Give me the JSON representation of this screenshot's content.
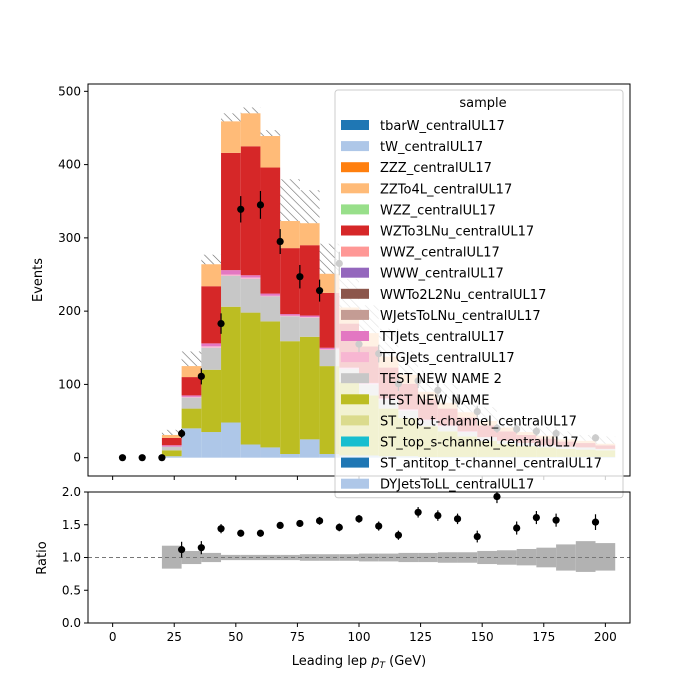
{
  "chart_data": {
    "type": "bar",
    "subtype": "stacked-histogram-with-ratio",
    "x_edges": [
      20,
      28,
      36,
      44,
      52,
      60,
      68,
      76,
      84,
      92,
      100,
      108,
      116,
      124,
      132,
      140,
      148,
      156,
      164,
      172,
      180,
      188,
      196,
      204
    ],
    "series": [
      {
        "name": "DYJetsToLL_centralUL17",
        "color": "#aec7e8",
        "values": [
          2,
          40,
          35,
          48,
          18,
          14,
          5,
          25,
          5,
          3,
          3,
          2,
          2,
          1,
          1,
          1,
          1,
          1,
          1,
          1,
          1,
          1,
          1
        ]
      },
      {
        "name": "TEST NEW NAME",
        "color": "#bcbd22",
        "values": [
          8,
          27,
          85,
          158,
          180,
          172,
          154,
          140,
          120,
          100,
          82,
          65,
          52,
          42,
          35,
          28,
          22,
          18,
          15,
          13,
          11,
          10,
          9
        ]
      },
      {
        "name": "TEST NEW NAME 2",
        "color": "#c7c7c7",
        "values": [
          5,
          15,
          30,
          42,
          46,
          34,
          34,
          26,
          22,
          18,
          15,
          12,
          10,
          8,
          7,
          6,
          5,
          4,
          4,
          3,
          3,
          3,
          2
        ]
      },
      {
        "name": "TTGJets_centralUL17",
        "color": "#f7b6d2",
        "values": [
          0,
          1,
          2,
          2,
          2,
          1,
          1,
          1,
          1,
          1,
          1,
          1,
          1,
          0,
          0,
          0,
          0,
          0,
          0,
          0,
          0,
          0,
          0
        ]
      },
      {
        "name": "TTJets_centralUL17",
        "color": "#e377c2",
        "values": [
          2,
          2,
          4,
          6,
          3,
          3,
          2,
          2,
          2,
          1,
          1,
          1,
          1,
          1,
          1,
          1,
          0,
          0,
          0,
          0,
          0,
          0,
          0
        ]
      },
      {
        "name": "WJetsToLNu_centralUL17",
        "color": "#c49c94",
        "values": [
          0,
          0,
          0,
          0,
          0,
          0,
          0,
          0,
          0,
          0,
          0,
          0,
          0,
          0,
          0,
          0,
          0,
          0,
          0,
          0,
          0,
          0,
          0
        ]
      },
      {
        "name": "WZTo3LNu_centralUL17",
        "color": "#d62728",
        "values": [
          10,
          25,
          78,
          160,
          176,
          172,
          90,
          96,
          75,
          60,
          50,
          42,
          35,
          28,
          23,
          19,
          16,
          13,
          11,
          9,
          7,
          6,
          5
        ]
      },
      {
        "name": "WWZ_centralUL17",
        "color": "#ff9896",
        "values": [
          0,
          0,
          0,
          0,
          0,
          0,
          0,
          0,
          0,
          0,
          0,
          0,
          0,
          0,
          0,
          0,
          0,
          0,
          0,
          0,
          0,
          0,
          0
        ]
      },
      {
        "name": "ZZTo4L_centralUL17",
        "color": "#ffbb78",
        "values": [
          4,
          15,
          30,
          43,
          45,
          43,
          37,
          30,
          26,
          22,
          18,
          15,
          12,
          10,
          8,
          7,
          6,
          5,
          4,
          4,
          3,
          3,
          2
        ]
      }
    ],
    "uncertainty_top": [
      38,
      145,
      277,
      470,
      478,
      447,
      380,
      365,
      292,
      244,
      208,
      176,
      146,
      119,
      101,
      85,
      69,
      56,
      47,
      42,
      36,
      31,
      29
    ],
    "data_points": {
      "x": [
        4,
        12,
        20,
        28,
        36,
        44,
        52,
        60,
        68,
        76,
        84,
        92,
        100,
        108,
        116,
        124,
        132,
        140,
        148,
        156,
        164,
        172,
        180,
        196
      ],
      "y": [
        0,
        0,
        0,
        33,
        111,
        183,
        339,
        345,
        295,
        247,
        228,
        265,
        155,
        142,
        101,
        105,
        92,
        78,
        63,
        40,
        39,
        36,
        33,
        27
      ],
      "yerr": [
        0,
        0,
        0,
        6,
        11,
        14,
        18,
        19,
        17,
        16,
        15,
        16,
        12,
        12,
        10,
        10,
        10,
        9,
        8,
        6,
        6,
        6,
        6,
        5
      ]
    },
    "ratio": {
      "x": [
        28,
        36,
        44,
        52,
        60,
        68,
        76,
        84,
        92,
        100,
        108,
        116,
        124,
        132,
        140,
        148,
        156,
        164,
        172,
        180,
        196
      ],
      "y": [
        1.12,
        1.15,
        1.44,
        1.37,
        1.37,
        1.49,
        1.52,
        1.56,
        1.46,
        1.59,
        1.48,
        1.34,
        1.69,
        1.64,
        1.59,
        1.32,
        1.93,
        1.45,
        1.61,
        1.57,
        1.54
      ],
      "yerr": [
        0.12,
        0.1,
        0.07,
        0.05,
        0.05,
        0.05,
        0.05,
        0.06,
        0.06,
        0.06,
        0.07,
        0.07,
        0.08,
        0.08,
        0.08,
        0.09,
        0.1,
        0.1,
        0.1,
        0.1,
        0.12
      ],
      "band_lo": [
        0.83,
        0.9,
        0.93,
        0.96,
        0.96,
        0.96,
        0.96,
        0.95,
        0.95,
        0.95,
        0.94,
        0.94,
        0.93,
        0.93,
        0.92,
        0.92,
        0.9,
        0.89,
        0.88,
        0.85,
        0.8,
        0.78,
        0.8
      ],
      "band_hi": [
        1.18,
        1.1,
        1.07,
        1.04,
        1.04,
        1.04,
        1.04,
        1.05,
        1.05,
        1.05,
        1.06,
        1.06,
        1.07,
        1.07,
        1.08,
        1.08,
        1.1,
        1.11,
        1.13,
        1.15,
        1.2,
        1.25,
        1.22
      ],
      "reference_line": 1.0
    },
    "xlabel_prefix": "Leading lep ",
    "xlabel_math": "p",
    "xlabel_sub": "T",
    "xlabel_suffix": " (GeV)",
    "ylabel": "Events",
    "ratio_ylabel": "Ratio",
    "xlim": [
      -10,
      210
    ],
    "ylim": [
      -25,
      510
    ],
    "ratio_ylim": [
      0.0,
      2.0
    ],
    "x_ticks": [
      0,
      25,
      50,
      75,
      100,
      125,
      150,
      175,
      200
    ],
    "y_ticks": [
      0,
      100,
      200,
      300,
      400,
      500
    ],
    "ratio_y_ticks": [
      0.0,
      0.5,
      1.0,
      1.5,
      2.0
    ],
    "legend": {
      "title": "sample",
      "placement": "top-right",
      "entries": [
        {
          "label": "tbarW_centralUL17",
          "color": "#1f77b4"
        },
        {
          "label": "tW_centralUL17",
          "color": "#aec7e8"
        },
        {
          "label": "ZZZ_centralUL17",
          "color": "#ff7f0e"
        },
        {
          "label": "ZZTo4L_centralUL17",
          "color": "#ffbb78"
        },
        {
          "label": "WZZ_centralUL17",
          "color": "#98df8a"
        },
        {
          "label": "WZTo3LNu_centralUL17",
          "color": "#d62728"
        },
        {
          "label": "WWZ_centralUL17",
          "color": "#ff9896"
        },
        {
          "label": "WWW_centralUL17",
          "color": "#9467bd"
        },
        {
          "label": "WWTo2L2Nu_centralUL17",
          "color": "#8c564b"
        },
        {
          "label": "WJetsToLNu_centralUL17",
          "color": "#c49c94"
        },
        {
          "label": "TTJets_centralUL17",
          "color": "#e377c2"
        },
        {
          "label": "TTGJets_centralUL17",
          "color": "#f7b6d2"
        },
        {
          "label": "TEST NEW NAME 2",
          "color": "#c7c7c7"
        },
        {
          "label": "TEST NEW NAME",
          "color": "#bcbd22"
        },
        {
          "label": "ST_top_t-channel_centralUL17",
          "color": "#dbdb8d"
        },
        {
          "label": "ST_top_s-channel_centralUL17",
          "color": "#17becf"
        },
        {
          "label": "ST_antitop_t-channel_centralUL17",
          "color": "#1f77b4"
        },
        {
          "label": "DYJetsToLL_centralUL17",
          "color": "#aec7e8"
        }
      ]
    }
  }
}
